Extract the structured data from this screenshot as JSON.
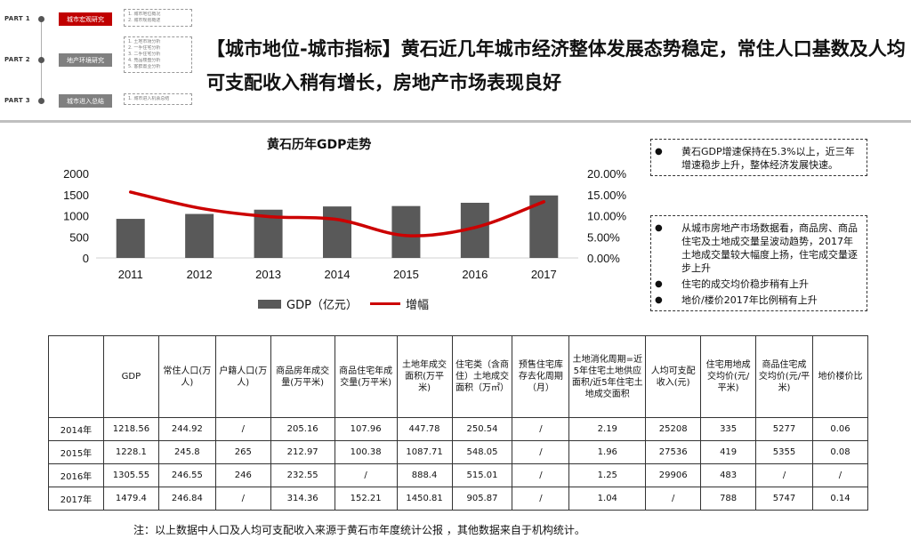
{
  "nav": {
    "parts": [
      {
        "part": "PART 1",
        "tag": "城市宏观研究",
        "active": true,
        "subs": [
          "1. 城市地位概况",
          "2. 城市规划概述"
        ]
      },
      {
        "part": "PART 2",
        "tag": "地产环境研究",
        "active": false,
        "subs": [
          "1. 土地市场分析",
          "2. 一手住宅分析",
          "3. 二手住宅分析",
          "4. 竞品楼盘分析",
          "5. 客群置业分析"
        ]
      },
      {
        "part": "PART 3",
        "tag": "城市进入总结",
        "active": false,
        "subs": [
          "1. 城市进入机会总结"
        ]
      }
    ]
  },
  "title": "【城市地位-城市指标】黄石近几年城市经济整体发展态势稳定，常住人口基数及人均可支配收入稍有增长，房地产市场表现良好",
  "chart_data": {
    "type": "bar+line",
    "title": "黄石历年GDP走势",
    "categories": [
      "2011",
      "2012",
      "2013",
      "2014",
      "2015",
      "2016",
      "2017"
    ],
    "series": [
      {
        "name": "GDP（亿元）",
        "type": "bar",
        "axis": "left",
        "color": "#595959",
        "values": [
          925,
          1041,
          1142,
          1218.56,
          1228.1,
          1305.55,
          1479.4
        ]
      },
      {
        "name": "增幅",
        "type": "line",
        "axis": "right",
        "color": "#cc0000",
        "values": [
          15.6,
          11.8,
          9.8,
          9.1,
          5.3,
          7.2,
          13.3
        ]
      }
    ],
    "left_axis": {
      "ticks": [
        "0",
        "500",
        "1000",
        "1500",
        "2000"
      ],
      "ylim": [
        0,
        2000
      ]
    },
    "right_axis": {
      "ticks": [
        "0.00%",
        "5.00%",
        "10.00%",
        "15.00%",
        "20.00%"
      ],
      "ylim": [
        0,
        20
      ]
    },
    "legend": "bottom-center"
  },
  "notes": [
    {
      "bullets": [
        "黄石GDP增速保持在5.3%以上，近三年增速稳步上升，整体经济发展快速。"
      ]
    },
    {
      "bullets": [
        "从城市房地产市场数据看，商品房、商品住宅及土地成交量呈波动趋势，2017年土地成交量较大幅度上扬，住宅成交量逐步上升",
        "住宅的成交均价稳步稍有上升",
        "地价/楼价2017年比例稍有上升"
      ]
    }
  ],
  "table": {
    "headers": [
      "",
      "GDP",
      "常住人口(万人)",
      "户籍人口(万人)",
      "商品房年成交量(万平米)",
      "商品住宅年成交量(万平米)",
      "土地年成交面积(万平米)",
      "住宅类（含商住）土地成交面积（万㎡）",
      "预售住宅库存去化周期（月）",
      "土地消化周期=近5年住宅土地供应面积/近5年住宅土地成交面积",
      "人均可支配收入(元)",
      "住宅用地成交均价(元/平米)",
      "商品住宅成交均价(元/平米)",
      "地价楼价比"
    ],
    "rows": [
      [
        "2014年",
        "1218.56",
        "244.92",
        "/",
        "205.16",
        "107.96",
        "447.78",
        "250.54",
        "/",
        "2.19",
        "25208",
        "335",
        "5277",
        "0.06"
      ],
      [
        "2015年",
        "1228.1",
        "245.8",
        "265",
        "212.97",
        "100.38",
        "1087.71",
        "548.05",
        "/",
        "1.96",
        "27536",
        "419",
        "5355",
        "0.08"
      ],
      [
        "2016年",
        "1305.55",
        "246.55",
        "246",
        "232.55",
        "/",
        "888.4",
        "515.01",
        "/",
        "1.25",
        "29906",
        "483",
        "/",
        "/"
      ],
      [
        "2017年",
        "1479.4",
        "246.84",
        "/",
        "314.36",
        "152.21",
        "1450.81",
        "905.87",
        "/",
        "1.04",
        "/",
        "788",
        "5747",
        "0.14"
      ]
    ]
  },
  "footnote": "注：以上数据中人口及人均可支配收入来源于黄石市年度统计公报 ，其他数据来自于机构统计。"
}
